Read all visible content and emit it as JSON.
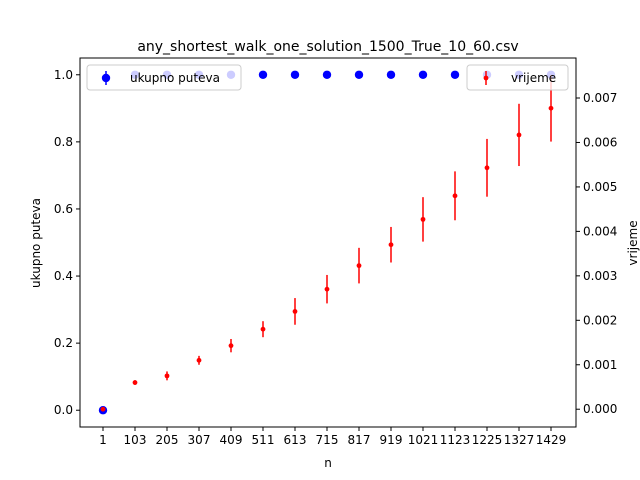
{
  "chart_data": {
    "type": "scatter",
    "title": "any_shortest_walk_one_solution_1500_True_10_60.csv",
    "xlabel": "n",
    "ylabel_left": "ukupno puteva",
    "ylabel_right": "vrijeme",
    "categories": [
      "1",
      "103",
      "205",
      "307",
      "409",
      "511",
      "613",
      "715",
      "817",
      "919",
      "1021",
      "1123",
      "1225",
      "1327",
      "1429"
    ],
    "left_axis": {
      "ylim": [
        -0.05,
        1.05
      ],
      "ticks": [
        "0.0",
        "0.2",
        "0.4",
        "0.6",
        "0.8",
        "1.0"
      ],
      "tick_values": [
        0,
        0.2,
        0.4,
        0.6,
        0.8,
        1.0
      ]
    },
    "right_axis": {
      "ylim": [
        -0.0004,
        0.0079
      ],
      "ticks": [
        "0.000",
        "0.001",
        "0.002",
        "0.003",
        "0.004",
        "0.005",
        "0.006",
        "0.007"
      ],
      "tick_values": [
        0,
        0.001,
        0.002,
        0.003,
        0.004,
        0.005,
        0.006,
        0.007
      ]
    },
    "series": [
      {
        "name": "ukupno puteva",
        "axis": "left",
        "color": "#0000ff",
        "values": [
          0,
          1,
          1,
          1,
          1,
          1,
          1,
          1,
          1,
          1,
          1,
          1,
          1,
          1,
          1
        ],
        "errors": [
          0,
          0,
          0,
          0,
          0,
          0,
          0,
          0,
          0,
          0,
          0,
          0,
          0,
          0,
          0
        ]
      },
      {
        "name": "vrijeme",
        "axis": "right",
        "color": "#ff0000",
        "values": [
          0.0,
          0.0006,
          0.00075,
          0.0011,
          0.00143,
          0.0018,
          0.0022,
          0.0027,
          0.00323,
          0.0037,
          0.00427,
          0.0048,
          0.00543,
          0.00617,
          0.00677
        ],
        "errors": [
          0.0,
          5e-05,
          0.0001,
          0.0001,
          0.00015,
          0.00018,
          0.0003,
          0.00032,
          0.0004,
          0.0004,
          0.0005,
          0.00055,
          0.00065,
          0.0007,
          0.00075
        ]
      }
    ],
    "legend_left": {
      "placement": "top-left"
    },
    "legend_right": {
      "placement": "top-right"
    },
    "grid": false
  }
}
